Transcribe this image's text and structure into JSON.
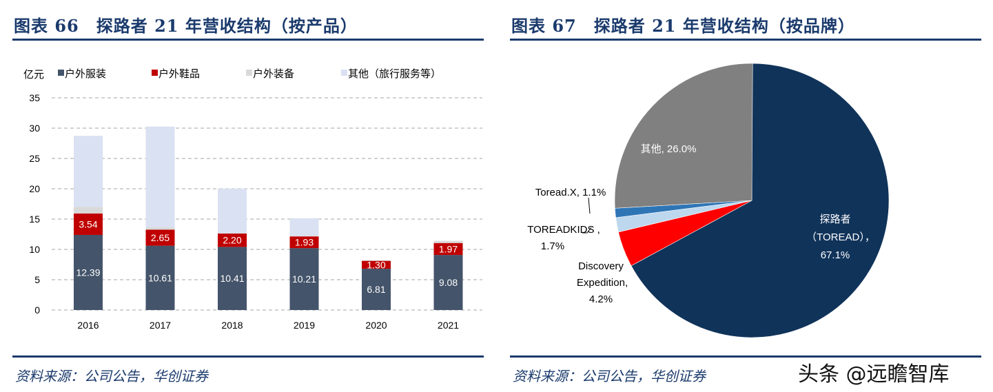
{
  "left_panel": {
    "title": "图表 66　探路者 21 年营收结构（按产品）",
    "source": "资料来源：公司公告，华创证券"
  },
  "right_panel": {
    "title": "图表 67　探路者 21 年营收结构（按品牌）",
    "source": "资料来源：公司公告，华创证券"
  },
  "watermark": "头条 @远瞻智库",
  "chart_data": [
    {
      "type": "bar",
      "stacked": true,
      "ylabel": "亿元",
      "ylim": [
        0,
        35
      ],
      "yticks": [
        0,
        5,
        10,
        15,
        20,
        25,
        30,
        35
      ],
      "grid": true,
      "legend": "top",
      "categories": [
        "2016",
        "2017",
        "2018",
        "2019",
        "2020",
        "2021"
      ],
      "series": [
        {
          "name": "户外服装",
          "color": "#44546a",
          "values": [
            12.39,
            10.61,
            10.41,
            10.21,
            6.81,
            9.08
          ],
          "labels": true
        },
        {
          "name": "户外鞋品",
          "color": "#c00000",
          "values": [
            3.54,
            2.65,
            2.2,
            1.93,
            1.3,
            1.97
          ],
          "labels": true
        },
        {
          "name": "户外装备",
          "color": "#d9d9d9",
          "values": [
            1.1,
            0.4,
            0.1,
            0.1,
            0.1,
            0.35
          ],
          "labels": false
        },
        {
          "name": "其他（旅行服务等）",
          "color": "#d9e1f2",
          "values": [
            11.7,
            16.6,
            7.3,
            2.9,
            0,
            0
          ],
          "labels": false
        }
      ]
    },
    {
      "type": "pie",
      "start": "top",
      "direction": "clockwise",
      "slices": [
        {
          "label": "探路者（TOREAD），67.1%",
          "value": 67.1,
          "color": "#10335a"
        },
        {
          "label": "Discovery Expedition, 4.2%",
          "value": 4.2,
          "color": "#ff0000"
        },
        {
          "label": "TOREADKIDS , 1.7%",
          "value": 1.7,
          "color": "#bdd7ee"
        },
        {
          "label": "Toread.X, 1.1%",
          "value": 1.1,
          "color": "#2e75b6"
        },
        {
          "label": "其他, 26.0%",
          "value": 26.0,
          "color": "#808080"
        }
      ]
    }
  ]
}
